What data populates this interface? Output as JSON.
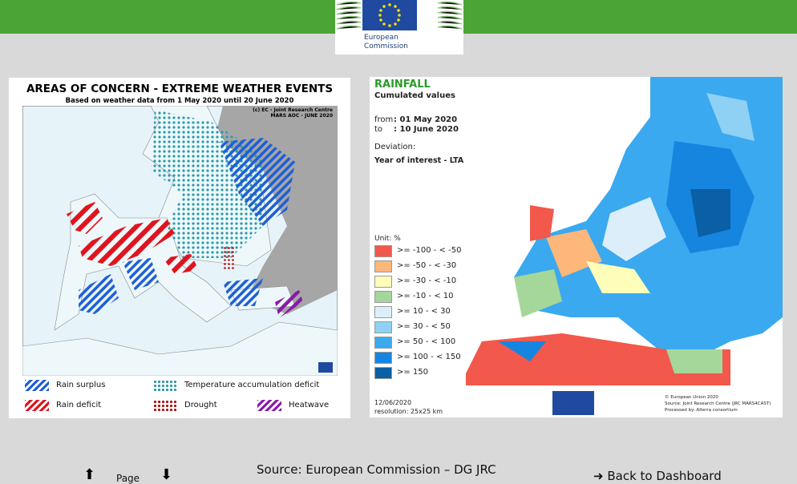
{
  "header": {
    "logo_text_1": "European",
    "logo_text_2": "Commission"
  },
  "left_map": {
    "title": "AREAS OF CONCERN - EXTREME WEATHER EVENTS",
    "subtitle": "Based on weather data from 1 May 2020 until 20 June 2020",
    "credit_1": "(c) EC - Joint Research Centre",
    "credit_2": "MARS AOC - JUNE 2020",
    "legend": [
      {
        "label": "Rain surplus",
        "color": "#1f5fd6",
        "style": "stripes"
      },
      {
        "label": "Temperature accumulation deficit",
        "color": "#2a9aa8",
        "style": "dots"
      },
      {
        "label": "Rain deficit",
        "color": "#e0141e",
        "style": "stripes"
      },
      {
        "label": "Drought",
        "color": "#b01010",
        "style": "dots"
      },
      {
        "label": "Heatwave",
        "color": "#8a1aa8",
        "style": "stripes"
      }
    ]
  },
  "right_map": {
    "title": "RAINFALL",
    "subtitle": "Cumulated values",
    "from_label": "from",
    "from_value": ": 01 May 2020",
    "to_label": "to",
    "to_value": ": 10 June 2020",
    "deviation": "Deviation:",
    "year": "Year of interest - LTA",
    "unit": "Unit: %",
    "legend": [
      {
        "label": ">= -100 - < -50",
        "color": "#f2584c"
      },
      {
        "label": ">= -50 - < -30",
        "color": "#fdb77a"
      },
      {
        "label": ">= -30 - < -10",
        "color": "#fefdb9"
      },
      {
        "label": ">= -10 - < 10",
        "color": "#a6d79a"
      },
      {
        "label": ">= 10 - < 30",
        "color": "#dceefa"
      },
      {
        "label": ">= 30 - < 50",
        "color": "#8fd0f5"
      },
      {
        "label": ">= 50 - < 100",
        "color": "#3aa9ef"
      },
      {
        "label": ">= 100 - < 150",
        "color": "#1685e0"
      },
      {
        "label": ">= 150",
        "color": "#0b5fa5"
      }
    ],
    "date": "12/06/2020",
    "resolution": "resolution: 25x25 km",
    "credit_1": "© European Union 2020",
    "credit_2": "Source: Joint Research Centre (JRC MARS4CAST)",
    "credit_3": "Processed by: Alterra consortium"
  },
  "footer": {
    "source": "Source: European Commission – DG JRC",
    "page": "Page",
    "dashboard": "Back to Dashboard"
  }
}
